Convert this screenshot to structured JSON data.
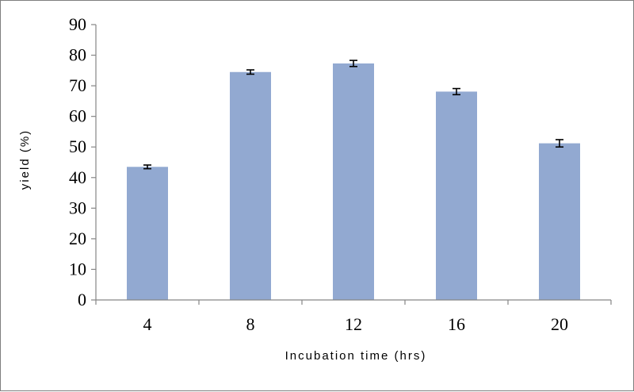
{
  "chart_data": {
    "type": "bar",
    "categories": [
      "4",
      "8",
      "12",
      "16",
      "20"
    ],
    "values": [
      43.5,
      74.5,
      77.3,
      68.1,
      51.2
    ],
    "errors": [
      0.6,
      0.7,
      1.0,
      1.0,
      1.2
    ],
    "xlabel": "Incubation time (hrs)",
    "ylabel": "yield (%)",
    "ylim": [
      0,
      90
    ],
    "yticks": [
      0,
      10,
      20,
      30,
      40,
      50,
      60,
      70,
      80,
      90
    ],
    "bar_color": "#92a9d1",
    "axis_color": "#868686",
    "errorbar_color": "#000000",
    "grid": false,
    "legend": "none"
  }
}
